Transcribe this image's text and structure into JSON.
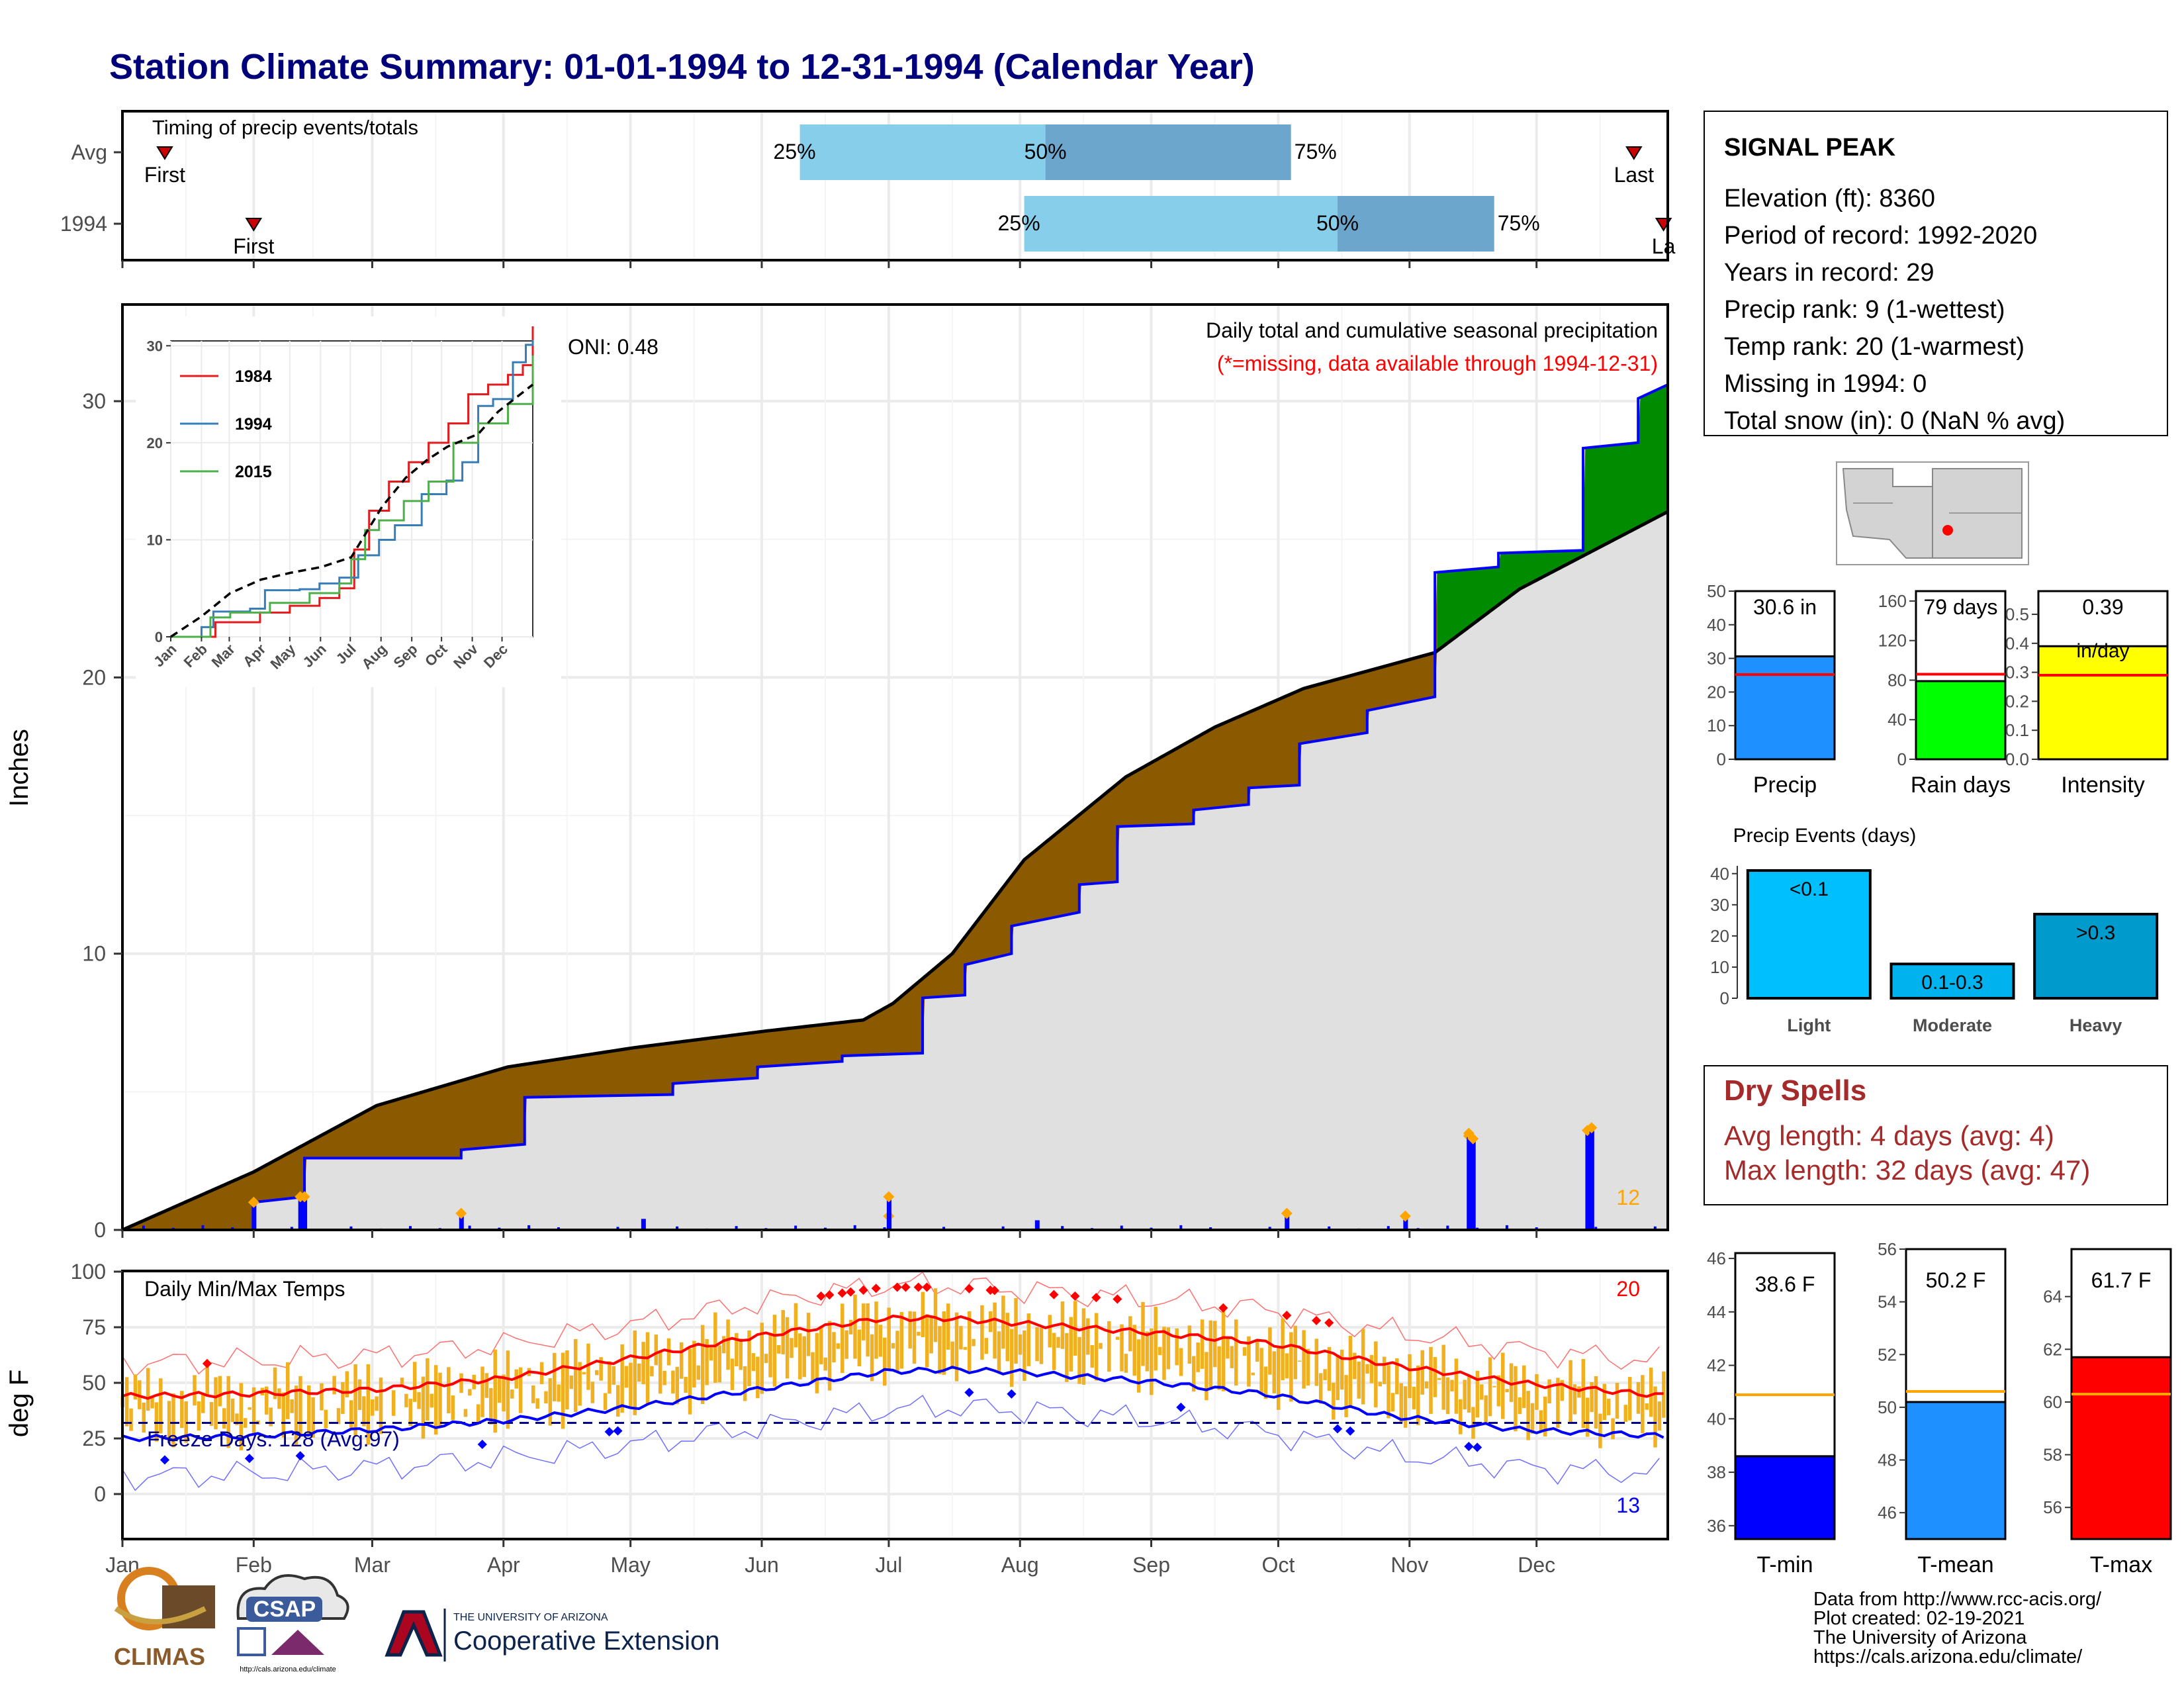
{
  "title": "Station Climate Summary: 01-01-1994 to 12-31-1994 (Calendar Year)",
  "colors": {
    "title": "#00007a",
    "q_light": "#87ceeb",
    "q_dark": "#6ca6cd",
    "brown": "#8b5a00",
    "green": "#008b00",
    "gray_fill": "#e0e0e0",
    "blue": "#0000ff",
    "orange": "#ffa500",
    "temp_bar": "#f0b020",
    "red": "#ff0000",
    "dry_text": "#a52a2a"
  },
  "timing_panel": {
    "title": "Timing of precip events/totals",
    "rows": [
      {
        "label": "Avg",
        "first_day": 10,
        "last_day": 357,
        "q25_day": 160,
        "q50_day": 218,
        "q75_day": 276,
        "first_label": "First",
        "last_label": "Last",
        "q25_label": "25%",
        "q50_label": "50%",
        "q75_label": "75%"
      },
      {
        "label": "1994",
        "first_day": 31,
        "last_day": 364,
        "q25_day": 213,
        "q50_day": 287,
        "q75_day": 324,
        "first_label": "First",
        "last_label": "La",
        "q25_label": "25%",
        "q50_label": "50%",
        "q75_label": "75%"
      }
    ]
  },
  "precip_panel": {
    "ylabel": "Inches",
    "yticks": [
      "0",
      "10",
      "20",
      "30"
    ],
    "title_line1": "Daily total and cumulative seasonal precipitation",
    "title_line2": "(*=missing, data available through 1994-12-31)",
    "oni": "ONI: 0.48",
    "count_label": "12"
  },
  "inset": {
    "legend": [
      "1984",
      "1994",
      "2015"
    ],
    "xticks": [
      "Jan",
      "Feb",
      "Mar",
      "Apr",
      "May",
      "Jun",
      "Jul",
      "Aug",
      "Sep",
      "Oct",
      "Nov",
      "Dec"
    ],
    "yticks": [
      "0",
      "10",
      "20",
      "30"
    ]
  },
  "temp_panel": {
    "ylabel": "deg F",
    "title": "Daily Min/Max Temps",
    "yticks": [
      "0",
      "25",
      "50",
      "75",
      "100"
    ],
    "freeze": "Freeze Days: 128 (Avg:97)",
    "hot_count": "20",
    "cold_count": "13"
  },
  "months": [
    "Jan",
    "Feb",
    "Mar",
    "Apr",
    "May",
    "Jun",
    "Jul",
    "Aug",
    "Sep",
    "Oct",
    "Nov",
    "Dec"
  ],
  "station": {
    "name": "SIGNAL PEAK",
    "lines": [
      "Elevation (ft): 8360",
      "Period of record: 1992-2020",
      "Years in record: 29",
      "Precip rank: 9 (1-wettest)",
      "Temp rank: 20 (1-warmest)",
      "Missing in 1994: 0",
      "Total snow (in): 0 (NaN % avg)"
    ]
  },
  "mini_bars": [
    {
      "label": "Precip",
      "value_label": "30.6 in",
      "value": 30.6,
      "avg": 25.2,
      "max": 50,
      "yticks": [
        "0",
        "10",
        "20",
        "30",
        "40",
        "50"
      ],
      "tickvals": [
        0,
        10,
        20,
        30,
        40,
        50
      ],
      "color": "#1e90ff"
    },
    {
      "label": "Rain days",
      "value_label": "79 days",
      "value": 79,
      "avg": 86,
      "max": 170,
      "yticks": [
        "0",
        "40",
        "80",
        "120",
        "160"
      ],
      "tickvals": [
        0,
        40,
        80,
        120,
        160
      ],
      "color": "#00ff00"
    },
    {
      "label": "Intensity",
      "value_label": "0.39",
      "value_label2": "in/day",
      "value": 0.39,
      "avg": 0.29,
      "max": 0.58,
      "yticks": [
        "0.0",
        "0.1",
        "0.2",
        "0.3",
        "0.4",
        "0.5"
      ],
      "tickvals": [
        0,
        0.1,
        0.2,
        0.3,
        0.4,
        0.5
      ],
      "color": "#ffff00"
    }
  ],
  "events": {
    "title": "Precip Events (days)",
    "yticks": [
      "0",
      "10",
      "20",
      "30",
      "40"
    ],
    "bars": [
      {
        "category": "Light",
        "inner": "<0.1",
        "value": 41,
        "color": "#00bfff"
      },
      {
        "category": "Moderate",
        "inner": "0.1-0.3",
        "value": 11,
        "color": "#00b2ee"
      },
      {
        "category": "Heavy",
        "inner": ">0.3",
        "value": 27,
        "color": "#009acd"
      }
    ]
  },
  "dry_spells": {
    "title": "Dry Spells",
    "avg": "Avg length: 4 days (avg: 4)",
    "max": "Max length: 32 days (avg: 47)"
  },
  "temp_bars": [
    {
      "label": "T-min",
      "value_label": "38.6 F",
      "value": 38.6,
      "avg": 40.9,
      "min": 35.5,
      "max": 46.2,
      "yticks": [
        "36",
        "38",
        "40",
        "42",
        "44",
        "46"
      ],
      "tickvals": [
        36,
        38,
        40,
        42,
        44,
        46
      ],
      "color": "#0000ff"
    },
    {
      "label": "T-mean",
      "value_label": "50.2 F",
      "value": 50.2,
      "avg": 50.6,
      "min": 45,
      "max": 56,
      "yticks": [
        "46",
        "48",
        "50",
        "52",
        "54",
        "56"
      ],
      "tickvals": [
        46,
        48,
        50,
        52,
        54,
        56
      ],
      "color": "#1e90ff"
    },
    {
      "label": "T-max",
      "value_label": "61.7 F",
      "value": 61.7,
      "avg": 60.3,
      "min": 54.8,
      "max": 65.8,
      "yticks": [
        "56",
        "58",
        "60",
        "62",
        "64"
      ],
      "tickvals": [
        56,
        58,
        60,
        62,
        64
      ],
      "color": "#ff0000"
    }
  ],
  "footer": {
    "lines": [
      "Data from http://www.rcc-acis.org/",
      "Plot created: 02-19-2021",
      "The University of Arizona",
      "https://cals.arizona.edu/climate/"
    ],
    "climas": "CLIMAS",
    "csap": "CSAP",
    "csap_url": "http://cals.arizona.edu/climate",
    "ua_small": "THE UNIVERSITY OF ARIZONA",
    "ua_big": "Cooperative Extension"
  },
  "chart_data": [
    {
      "type": "area",
      "title": "Daily total and cumulative seasonal precipitation",
      "ylabel": "Inches",
      "ylim": [
        0,
        33.5
      ],
      "xlim_days": [
        0,
        365
      ],
      "series": [
        {
          "name": "1994",
          "x": [
            0,
            31,
            31,
            43,
            43,
            80,
            80,
            95,
            95,
            130,
            130,
            150,
            150,
            170,
            170,
            189,
            189,
            199,
            199,
            210,
            210,
            226,
            226,
            235,
            235,
            253,
            253,
            266,
            266,
            278,
            278,
            294,
            294,
            310,
            310,
            325,
            325,
            345,
            345,
            358,
            358,
            365
          ],
          "values": [
            0,
            0,
            1.0,
            1.2,
            2.6,
            2.6,
            2.9,
            3.1,
            4.8,
            4.9,
            5.3,
            5.5,
            5.9,
            6.1,
            6.3,
            6.4,
            8.4,
            8.5,
            9.6,
            10.0,
            11.0,
            11.5,
            12.5,
            12.6,
            14.6,
            14.7,
            15.2,
            15.4,
            16.0,
            16.1,
            17.6,
            18.0,
            18.8,
            19.3,
            23.8,
            24.0,
            24.5,
            24.6,
            28.3,
            28.5,
            30.1,
            30.6
          ]
        },
        {
          "name": "Avg",
          "x": [
            0,
            31,
            60,
            91,
            121,
            152,
            175,
            182,
            196,
            213,
            237,
            258,
            279,
            310,
            330,
            365
          ],
          "values": [
            0,
            2.1,
            4.5,
            5.9,
            6.6,
            7.2,
            7.6,
            8.2,
            10.0,
            13.4,
            16.4,
            18.2,
            19.6,
            20.9,
            23.2,
            26.0
          ]
        }
      ],
      "daily_spikes": {
        "name": "Daily precip",
        "x": [
          31,
          42,
          43,
          80,
          123,
          181,
          181,
          216,
          275,
          303,
          318,
          318,
          319,
          346,
          347
        ],
        "values": [
          1.0,
          1.2,
          1.2,
          0.6,
          0.4,
          0.5,
          1.2,
          0.35,
          0.6,
          0.5,
          3.4,
          3.5,
          3.3,
          3.6,
          3.7
        ]
      }
    },
    {
      "type": "line",
      "title": "",
      "xticks": [
        "Jan",
        "Feb",
        "Mar",
        "Apr",
        "May",
        "Jun",
        "Jul",
        "Aug",
        "Sep",
        "Oct",
        "Nov",
        "Dec"
      ],
      "ylim": [
        0,
        30
      ],
      "series": [
        {
          "name": "1984",
          "x": [
            0,
            45,
            90,
            120,
            150,
            170,
            185,
            200,
            220,
            240,
            260,
            280,
            300,
            320,
            340,
            355,
            365
          ],
          "values": [
            0,
            1.5,
            2.5,
            3.2,
            4.0,
            5.0,
            9.0,
            13,
            16,
            18,
            20,
            22,
            25,
            26,
            27,
            28,
            32
          ]
        },
        {
          "name": "1994",
          "x": [
            0,
            31,
            43,
            80,
            95,
            130,
            150,
            170,
            189,
            210,
            226,
            253,
            278,
            294,
            310,
            325,
            345,
            358,
            365
          ],
          "values": [
            0,
            1.0,
            2.6,
            2.9,
            4.8,
            4.9,
            5.5,
            6.1,
            8.4,
            10.0,
            11.5,
            14.7,
            16.1,
            18.0,
            23.8,
            24.5,
            28.3,
            30.1,
            30.6
          ]
        },
        {
          "name": "2015",
          "x": [
            0,
            40,
            60,
            100,
            140,
            170,
            182,
            196,
            210,
            235,
            260,
            285,
            310,
            340,
            365
          ],
          "values": [
            0,
            2,
            2.5,
            3.5,
            4.5,
            5.5,
            8,
            11,
            12,
            14,
            16,
            20,
            22,
            24,
            29
          ]
        },
        {
          "name": "Avg",
          "x": [
            0,
            31,
            60,
            91,
            121,
            152,
            182,
            213,
            237,
            258,
            279,
            310,
            330,
            365
          ],
          "values": [
            0,
            2.1,
            4.5,
            5.9,
            6.6,
            7.2,
            8.2,
            13.4,
            16.4,
            18.2,
            19.6,
            20.9,
            23.2,
            26.0
          ]
        }
      ]
    },
    {
      "type": "line",
      "title": "Daily Min/Max Temps",
      "ylabel": "deg F",
      "ylim": [
        -15,
        100
      ],
      "series": [
        {
          "name": "avg_max",
          "x": [
            0,
            30,
            60,
            90,
            120,
            150,
            180,
            195,
            210,
            240,
            270,
            300,
            330,
            365
          ],
          "values": [
            44,
            45,
            47,
            52,
            61,
            71,
            79,
            79,
            77,
            73,
            68,
            58,
            50,
            44
          ]
        },
        {
          "name": "avg_min",
          "x": [
            0,
            30,
            60,
            90,
            120,
            150,
            180,
            195,
            210,
            240,
            270,
            300,
            330,
            365
          ],
          "values": [
            25,
            26,
            29,
            33,
            39,
            47,
            55,
            56,
            55,
            51,
            45,
            35,
            29,
            26
          ]
        },
        {
          "name": "freeze_line",
          "x": [
            0,
            365
          ],
          "values": [
            32,
            32
          ]
        }
      ]
    },
    {
      "type": "bar",
      "title": "Precip Events (days)",
      "categories": [
        "Light",
        "Moderate",
        "Heavy"
      ],
      "values": [
        41,
        11,
        27
      ]
    }
  ]
}
